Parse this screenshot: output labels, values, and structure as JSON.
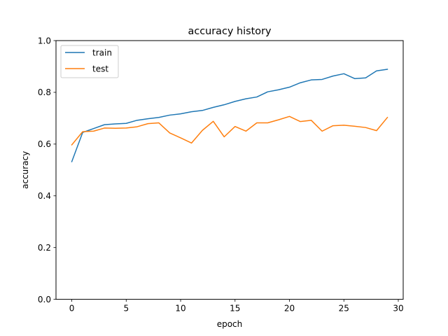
{
  "chart_data": {
    "type": "line",
    "title": "accuracy history",
    "xlabel": "epoch",
    "ylabel": "accuracy",
    "xlim": [
      -1.45,
      30.45
    ],
    "ylim": [
      0.0,
      1.0
    ],
    "xticks": [
      0,
      5,
      10,
      15,
      20,
      25,
      30
    ],
    "yticks": [
      0.0,
      0.2,
      0.4,
      0.6,
      0.8,
      1.0
    ],
    "xtick_labels": [
      "0",
      "5",
      "10",
      "15",
      "20",
      "25",
      "30"
    ],
    "ytick_labels": [
      "0.0",
      "0.2",
      "0.4",
      "0.6",
      "0.8",
      "1.0"
    ],
    "grid": false,
    "legend_position": "top-left",
    "x": [
      0,
      1,
      2,
      3,
      4,
      5,
      6,
      7,
      8,
      9,
      10,
      11,
      12,
      13,
      14,
      15,
      16,
      17,
      18,
      19,
      20,
      21,
      22,
      23,
      24,
      25,
      26,
      27,
      28,
      29
    ],
    "series": [
      {
        "name": "train",
        "color": "#1f77b4",
        "values": [
          0.532,
          0.645,
          0.66,
          0.675,
          0.678,
          0.68,
          0.692,
          0.698,
          0.703,
          0.712,
          0.717,
          0.725,
          0.73,
          0.742,
          0.752,
          0.765,
          0.775,
          0.782,
          0.802,
          0.81,
          0.82,
          0.837,
          0.848,
          0.85,
          0.863,
          0.872,
          0.853,
          0.856,
          0.883,
          0.889
        ]
      },
      {
        "name": "test",
        "color": "#ff7f0e",
        "values": [
          0.597,
          0.648,
          0.65,
          0.662,
          0.661,
          0.662,
          0.667,
          0.679,
          0.682,
          0.643,
          0.624,
          0.604,
          0.653,
          0.688,
          0.628,
          0.668,
          0.65,
          0.682,
          0.682,
          0.694,
          0.707,
          0.687,
          0.692,
          0.65,
          0.671,
          0.673,
          0.669,
          0.664,
          0.652,
          0.703
        ]
      }
    ]
  }
}
